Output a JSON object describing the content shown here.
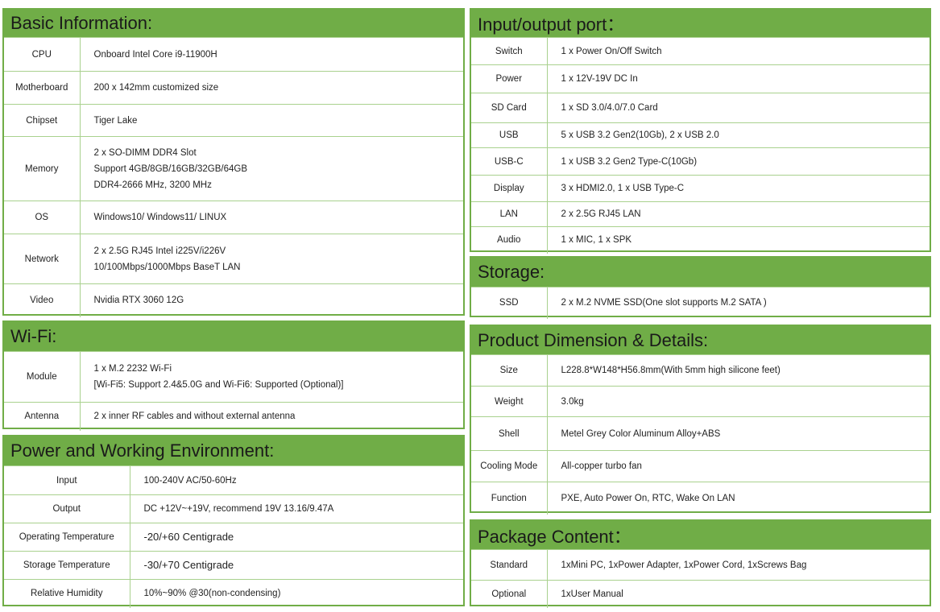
{
  "sections": [
    {
      "id": "basic",
      "title": "Basic Information:",
      "rows": [
        {
          "label": "CPU",
          "value": [
            "Onboard Intel Core i9-11900H"
          ]
        },
        {
          "label": "Motherboard",
          "value": [
            "200 x 142mm customized size"
          ]
        },
        {
          "label": "Chipset",
          "value": [
            "Tiger Lake"
          ]
        },
        {
          "label": "Memory",
          "value": [
            "2 x SO-DIMM DDR4 Slot",
            "Support 4GB/8GB/16GB/32GB/64GB",
            "DDR4-2666 MHz, 3200 MHz"
          ]
        },
        {
          "label": "OS",
          "value": [
            "Windows10/ Windows11/ LINUX"
          ]
        },
        {
          "label": "Network",
          "value": [
            "2 x 2.5G RJ45 Intel i225V/i226V",
            "10/100Mbps/1000Mbps BaseT LAN"
          ]
        },
        {
          "label": "Video",
          "value": [
            "Nvidia RTX 3060 12G"
          ]
        }
      ]
    },
    {
      "id": "wifi",
      "title": "Wi-Fi:",
      "rows": [
        {
          "label": "Module",
          "value": [
            "1 x M.2 2232 Wi-Fi",
            "[Wi-Fi5: Support 2.4&5.0G and Wi-Fi6: Supported (Optional)]"
          ]
        },
        {
          "label": "Antenna",
          "value": [
            "2 x inner RF cables and without external antenna"
          ]
        }
      ]
    },
    {
      "id": "power",
      "title": "Power and Working Environment:",
      "rows": [
        {
          "label": "Input",
          "value": [
            "100-240V AC/50-60Hz"
          ]
        },
        {
          "label": "Output",
          "value": [
            "DC +12V~+19V, recommend 19V 13.16/9.47A"
          ]
        },
        {
          "label": "Operating Temperature",
          "value": [
            "-20/+60 Centigrade"
          ]
        },
        {
          "label": "Storage Temperature",
          "value": [
            "-30/+70 Centigrade"
          ]
        },
        {
          "label": "Relative Humidity",
          "value": [
            "10%~90% @30(non-condensing)"
          ]
        }
      ]
    },
    {
      "id": "io",
      "title": "Input/output port：",
      "rows": [
        {
          "label": "Switch",
          "value": [
            "1 x Power On/Off Switch"
          ]
        },
        {
          "label": "Power",
          "value": [
            "1 x 12V-19V DC In"
          ]
        },
        {
          "label": "SD Card",
          "value": [
            "1 x SD 3.0/4.0/7.0 Card"
          ]
        },
        {
          "label": "USB",
          "value": [
            "5 x USB 3.2 Gen2(10Gb), 2 x USB 2.0"
          ]
        },
        {
          "label": "USB-C",
          "value": [
            "1 x USB 3.2 Gen2 Type-C(10Gb)"
          ]
        },
        {
          "label": "Display",
          "value": [
            "3 x HDMI2.0, 1 x USB Type-C"
          ]
        },
        {
          "label": "LAN",
          "value": [
            "2 x 2.5G RJ45 LAN"
          ]
        },
        {
          "label": "Audio",
          "value": [
            "1 x MIC, 1 x SPK"
          ]
        }
      ]
    },
    {
      "id": "storage",
      "title": "Storage:",
      "rows": [
        {
          "label": "SSD",
          "value": [
            "2 x M.2 NVME SSD(One slot supports M.2 SATA )"
          ]
        }
      ]
    },
    {
      "id": "product",
      "title": "Product Dimension & Details:",
      "rows": [
        {
          "label": "Size",
          "value": [
            "L228.8*W148*H56.8mm(With 5mm high silicone feet)"
          ]
        },
        {
          "label": "Weight",
          "value": [
            "3.0kg"
          ]
        },
        {
          "label": "Shell",
          "value": [
            "Metel Grey Color Aluminum Alloy+ABS"
          ]
        },
        {
          "label": "Cooling Mode",
          "value": [
            "All-copper turbo fan"
          ]
        },
        {
          "label": "Function",
          "value": [
            "PXE, Auto Power On, RTC, Wake On LAN"
          ]
        }
      ]
    },
    {
      "id": "package",
      "title": "Package Content：",
      "rows": [
        {
          "label": "Standard",
          "value": [
            "1xMini PC, 1xPower Adapter, 1xPower Cord, 1xScrews Bag"
          ]
        },
        {
          "label": "Optional",
          "value": [
            "1xUser Manual"
          ]
        }
      ]
    }
  ],
  "colors": {
    "accent": "#70ad47",
    "grid": "#a9d18e"
  }
}
